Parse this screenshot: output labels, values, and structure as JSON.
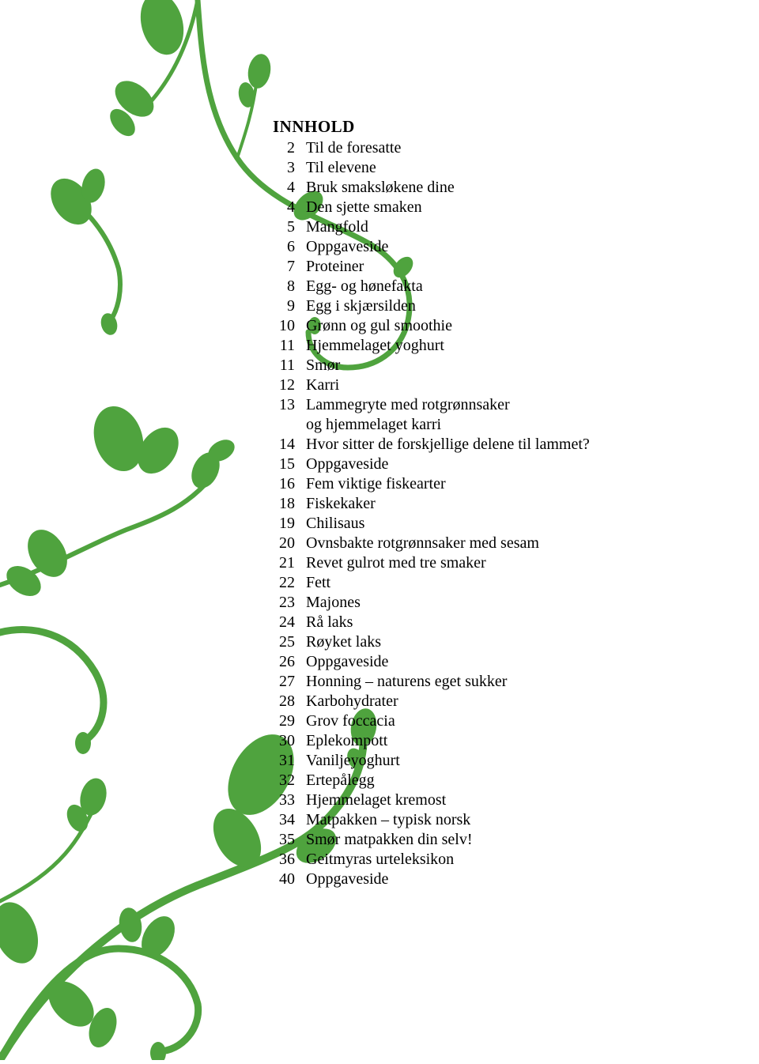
{
  "heading": "INNHOLD",
  "vine_color": "#4fa33e",
  "text_color": "#000000",
  "background_color": "#ffffff",
  "heading_fontsize": 21,
  "body_fontsize": 20,
  "toc": [
    {
      "page": "2",
      "title": "Til de foresatte"
    },
    {
      "page": "3",
      "title": "Til elevene"
    },
    {
      "page": "4",
      "title": "Bruk smaksløkene dine"
    },
    {
      "page": "4",
      "title": "Den sjette smaken"
    },
    {
      "page": "5",
      "title": "Mangfold"
    },
    {
      "page": "6",
      "title": "Oppgaveside"
    },
    {
      "page": "7",
      "title": "Proteiner"
    },
    {
      "page": "8",
      "title": "Egg- og hønefakta"
    },
    {
      "page": "9",
      "title": "Egg i skjærsilden"
    },
    {
      "page": "10",
      "title": "Grønn og gul smoothie"
    },
    {
      "page": "11",
      "title": "Hjemmelaget yoghurt"
    },
    {
      "page": "11",
      "title": "Smør"
    },
    {
      "page": "12",
      "title": "Karri"
    },
    {
      "page": "13",
      "title": "Lammegryte med rotgrønnsaker",
      "title2": "og hjemmelaget karri"
    },
    {
      "page": "14",
      "title": "Hvor sitter de forskjellige delene til lammet?"
    },
    {
      "page": "15",
      "title": "Oppgaveside"
    },
    {
      "page": "16",
      "title": "Fem viktige fiskearter"
    },
    {
      "page": "18",
      "title": "Fiskekaker"
    },
    {
      "page": "19",
      "title": "Chilisaus"
    },
    {
      "page": "20",
      "title": "Ovnsbakte rotgrønnsaker med sesam"
    },
    {
      "page": "21",
      "title": "Revet gulrot med tre smaker"
    },
    {
      "page": "22",
      "title": "Fett"
    },
    {
      "page": "23",
      "title": "Majones"
    },
    {
      "page": "24",
      "title": "Rå laks"
    },
    {
      "page": "25",
      "title": "Røyket laks"
    },
    {
      "page": "26",
      "title": "Oppgaveside"
    },
    {
      "page": "27",
      "title": "Honning – naturens eget sukker"
    },
    {
      "page": "28",
      "title": "Karbohydrater"
    },
    {
      "page": "29",
      "title": "Grov foccacia"
    },
    {
      "page": "30",
      "title": "Eplekompott"
    },
    {
      "page": "31",
      "title": "Vaniljeyoghurt"
    },
    {
      "page": "32",
      "title": "Ertepålegg"
    },
    {
      "page": "33",
      "title": "Hjemmelaget kremost"
    },
    {
      "page": "34",
      "title": "Matpakken – typisk norsk"
    },
    {
      "page": "35",
      "title": "Smør matpakken din selv!"
    },
    {
      "page": "36",
      "title": "Geitmyras urteleksikon"
    },
    {
      "page": "40",
      "title": "Oppgaveside"
    }
  ]
}
